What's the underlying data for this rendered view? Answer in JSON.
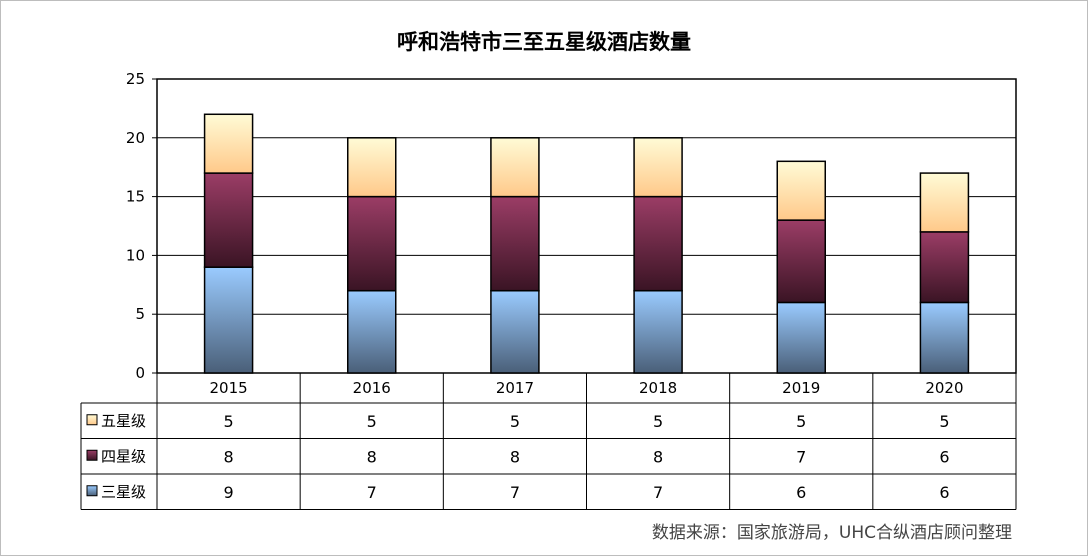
{
  "chart_data": {
    "type": "bar",
    "stacked": true,
    "title": "呼和浩特市三至五星级酒店数量",
    "categories": [
      "2015",
      "2016",
      "2017",
      "2018",
      "2019",
      "2020"
    ],
    "series": [
      {
        "name": "五星级",
        "values": [
          5,
          5,
          5,
          5,
          5,
          5
        ],
        "color": "#FFE08A"
      },
      {
        "name": "四星级",
        "values": [
          8,
          8,
          8,
          8,
          7,
          6
        ],
        "color": "#7B2A4A"
      },
      {
        "name": "三星级",
        "values": [
          9,
          7,
          7,
          7,
          6,
          6
        ],
        "color": "#7FB0E0"
      }
    ],
    "ylim": [
      0,
      25
    ],
    "yticks": [
      0,
      5,
      10,
      15,
      20,
      25
    ],
    "grid": true,
    "legend": "data-table"
  },
  "source_text": "数据来源：国家旅游局，UHC合纵酒店顾问整理"
}
